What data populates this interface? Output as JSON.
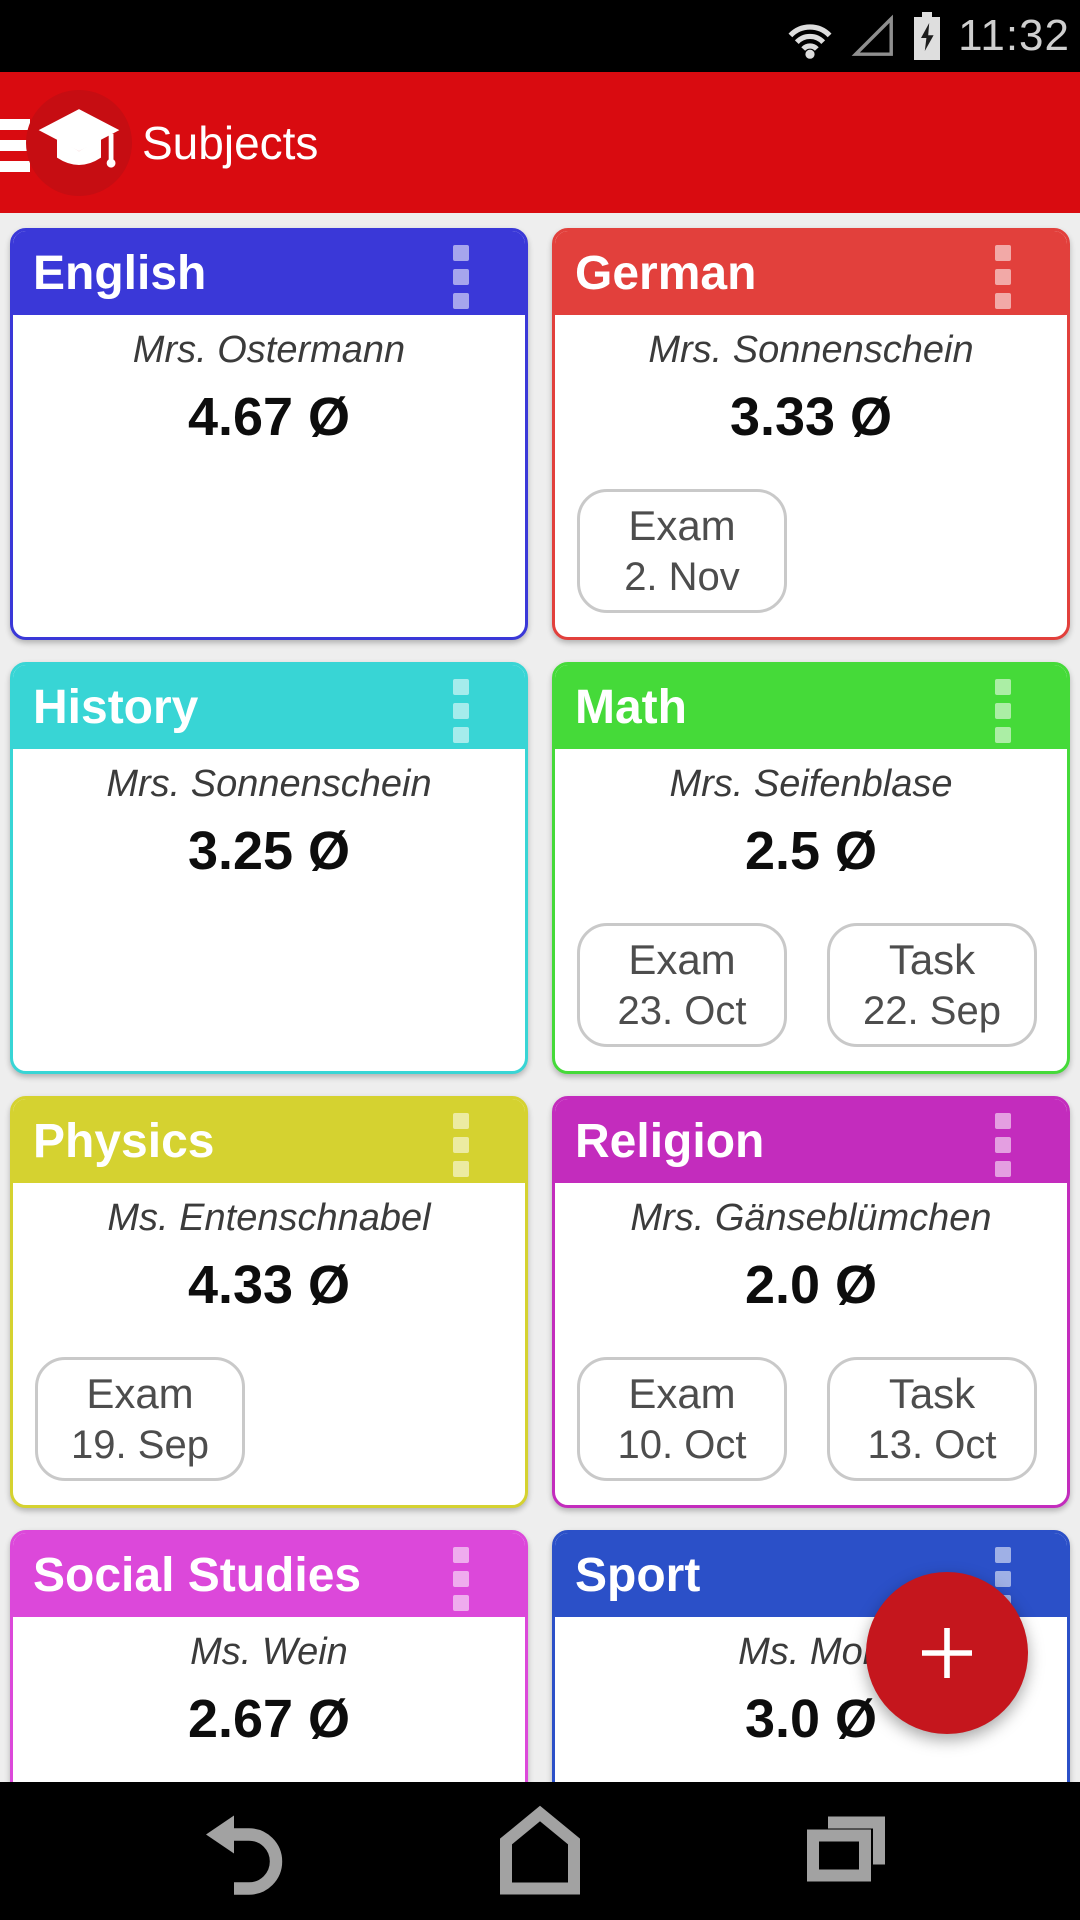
{
  "status_bar": {
    "time": "11:32",
    "icons": [
      "wifi-icon",
      "signal-icon",
      "battery-charging-icon"
    ]
  },
  "app_bar": {
    "title": "Subjects",
    "background_color": "#d90b10",
    "logo": "graduation-cap-icon"
  },
  "fab": {
    "icon": "plus-icon",
    "color": "#c5161d"
  },
  "nav_bar": {
    "icons": [
      "back-icon",
      "home-icon",
      "recents-icon"
    ]
  },
  "subjects": [
    {
      "name": "English",
      "teacher": "Mrs. Ostermann",
      "average": "4.67 Ø",
      "color": "#3a38d8",
      "events": []
    },
    {
      "name": "German",
      "teacher": "Mrs. Sonnenschein",
      "average": "3.33 Ø",
      "color": "#e2403c",
      "events": [
        {
          "type": "Exam",
          "date": "2. Nov"
        }
      ]
    },
    {
      "name": "History",
      "teacher": "Mrs. Sonnenschein",
      "average": "3.25 Ø",
      "color": "#38d5d5",
      "events": []
    },
    {
      "name": "Math",
      "teacher": "Mrs. Seifenblase",
      "average": "2.5 Ø",
      "color": "#45da39",
      "events": [
        {
          "type": "Exam",
          "date": "23. Oct"
        },
        {
          "type": "Task",
          "date": "22. Sep"
        }
      ]
    },
    {
      "name": "Physics",
      "teacher": "Ms. Entenschnabel",
      "average": "4.33 Ø",
      "color": "#d5d230",
      "events": [
        {
          "type": "Exam",
          "date": "19. Sep"
        }
      ]
    },
    {
      "name": "Religion",
      "teacher": "Mrs. Gänseblümchen",
      "average": "2.0 Ø",
      "color": "#c32cbd",
      "events": [
        {
          "type": "Exam",
          "date": "10. Oct"
        },
        {
          "type": "Task",
          "date": "13. Oct"
        }
      ]
    },
    {
      "name": "Social Studies",
      "teacher": "Ms. Wein",
      "average": "2.67 Ø",
      "color": "#dc48da",
      "events": []
    },
    {
      "name": "Sport",
      "teacher": "Ms. Mon",
      "average": "3.0 Ø",
      "color": "#2b50c8",
      "events": []
    }
  ]
}
